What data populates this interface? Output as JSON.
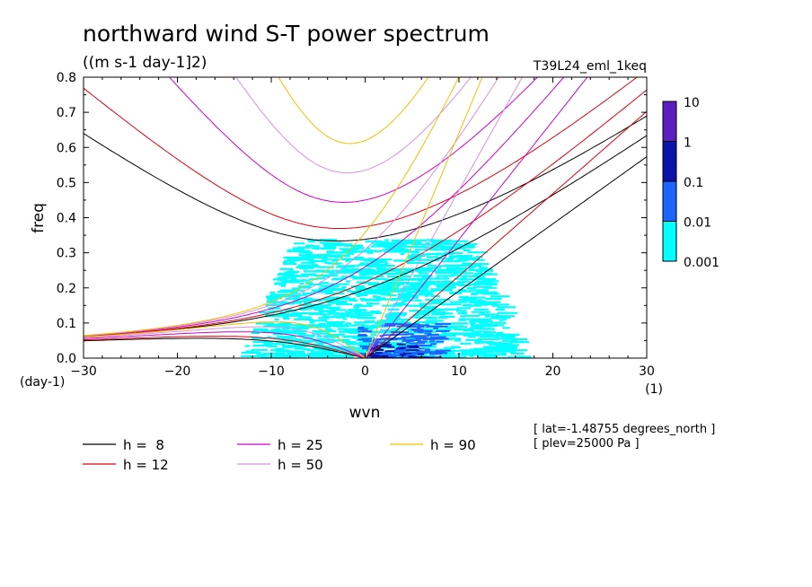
{
  "chart_data": {
    "type": "heatmap",
    "title": "northward wind S-T power spectrum",
    "subtitle": "((m s-1 day-1]2)",
    "experiment": "T39L24_eml_1keq",
    "xlabel": "wvn",
    "ylabel": "freq",
    "x_unit": "(1)",
    "y_unit": "(day-1)",
    "xlim": [
      -30,
      30
    ],
    "ylim": [
      0,
      0.8
    ],
    "xticks": [
      -30,
      -20,
      -10,
      0,
      10,
      20,
      30
    ],
    "yticks": [
      0.0,
      0.1,
      0.2,
      0.3,
      0.4,
      0.5,
      0.6,
      0.7,
      0.8
    ],
    "colorbar": {
      "labels": [
        "10",
        "1",
        "0.1",
        "0.01",
        "0.001"
      ],
      "colors": [
        "#5b1fbf",
        "#0a14a8",
        "#1a66ff",
        "#00ffff"
      ]
    },
    "curves": [
      {
        "name": "h =  8",
        "color": "#000000",
        "h": 8
      },
      {
        "name": "h = 12",
        "color": "#e0000e",
        "h": 12
      },
      {
        "name": "h = 25",
        "color": "#d000c8",
        "h": 25
      },
      {
        "name": "h = 50",
        "color": "#d890e0",
        "h": 50
      },
      {
        "name": "h = 90",
        "color": "#f0c000",
        "h": 90
      }
    ],
    "annotations": [
      "[ lat=-1.48755 degrees_north ]",
      "[ plev=25000 Pa ]"
    ]
  }
}
